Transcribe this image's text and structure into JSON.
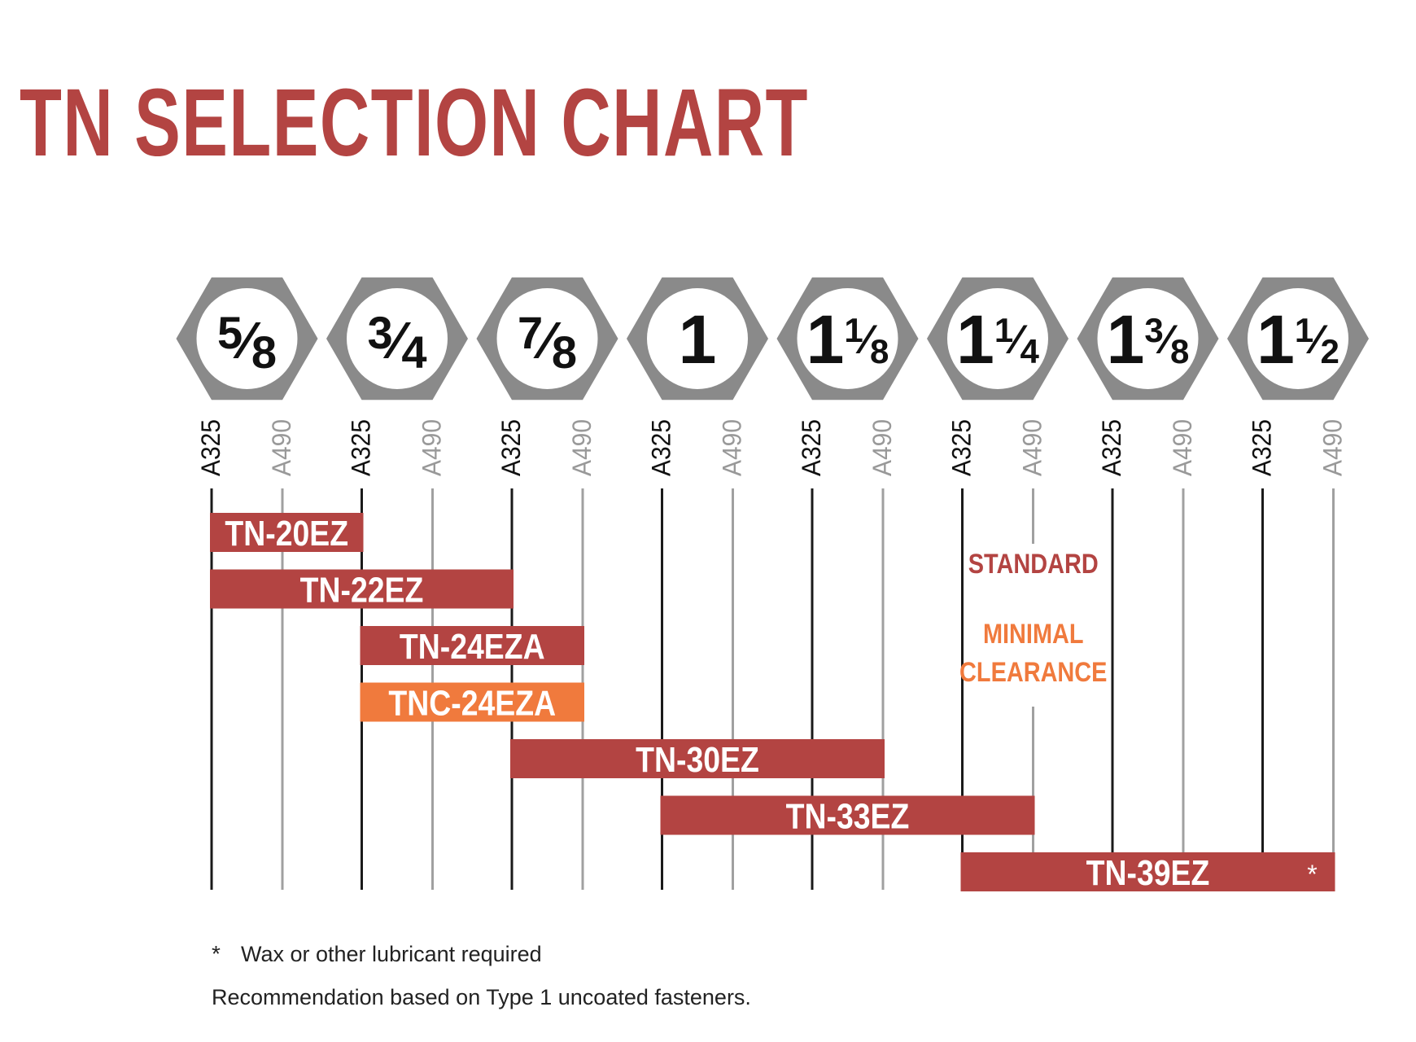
{
  "title": "TN SELECTION CHART",
  "colors": {
    "title": "#b34442",
    "standard": "#b34442",
    "minimal_clearance": "#f07a3d",
    "hexagon": "#8a8a8a",
    "a325_line": "#1a1a1a",
    "a490_line": "#a0a0a0",
    "bar_text": "#ffffff"
  },
  "chart_data": {
    "type": "range-bar",
    "bolt_sizes": [
      {
        "whole": "",
        "num": "5",
        "den": "8"
      },
      {
        "whole": "",
        "num": "3",
        "den": "4"
      },
      {
        "whole": "",
        "num": "7",
        "den": "8"
      },
      {
        "whole": "1",
        "num": "",
        "den": ""
      },
      {
        "whole": "1",
        "num": "1",
        "den": "8"
      },
      {
        "whole": "1",
        "num": "1",
        "den": "4"
      },
      {
        "whole": "1",
        "num": "3",
        "den": "8"
      },
      {
        "whole": "1",
        "num": "1",
        "den": "2"
      }
    ],
    "grades": [
      "A325",
      "A490"
    ],
    "bars": [
      {
        "label": "TN-20EZ",
        "type": "standard",
        "start": {
          "size": 0,
          "grade": "A325"
        },
        "end": {
          "size": 1,
          "grade": "A325"
        },
        "note": ""
      },
      {
        "label": "TN-22EZ",
        "type": "standard",
        "start": {
          "size": 0,
          "grade": "A325"
        },
        "end": {
          "size": 2,
          "grade": "A325"
        },
        "note": ""
      },
      {
        "label": "TN-24EZA",
        "type": "standard",
        "start": {
          "size": 1,
          "grade": "A325"
        },
        "end": {
          "size": 2,
          "grade": "A490"
        },
        "note": ""
      },
      {
        "label": "TNC-24EZA",
        "type": "minimal_clearance",
        "start": {
          "size": 1,
          "grade": "A325"
        },
        "end": {
          "size": 2,
          "grade": "A490"
        },
        "note": ""
      },
      {
        "label": "TN-30EZ",
        "type": "standard",
        "start": {
          "size": 2,
          "grade": "A325"
        },
        "end": {
          "size": 4,
          "grade": "A490"
        },
        "note": ""
      },
      {
        "label": "TN-33EZ",
        "type": "standard",
        "start": {
          "size": 3,
          "grade": "A325"
        },
        "end": {
          "size": 5,
          "grade": "A490"
        },
        "note": ""
      },
      {
        "label": "TN-39EZ",
        "type": "standard",
        "start": {
          "size": 5,
          "grade": "A325"
        },
        "end": {
          "size": 7,
          "grade": "A490"
        },
        "note": "*"
      }
    ],
    "legend": {
      "standard": "STANDARD",
      "minimal_clearance": [
        "MINIMAL",
        "CLEARANCE"
      ]
    }
  },
  "footnotes": {
    "asterisk": "*",
    "lubricant": "Wax or other lubricant required",
    "recommendation": "Recommendation based on Type 1 uncoated fasteners."
  }
}
